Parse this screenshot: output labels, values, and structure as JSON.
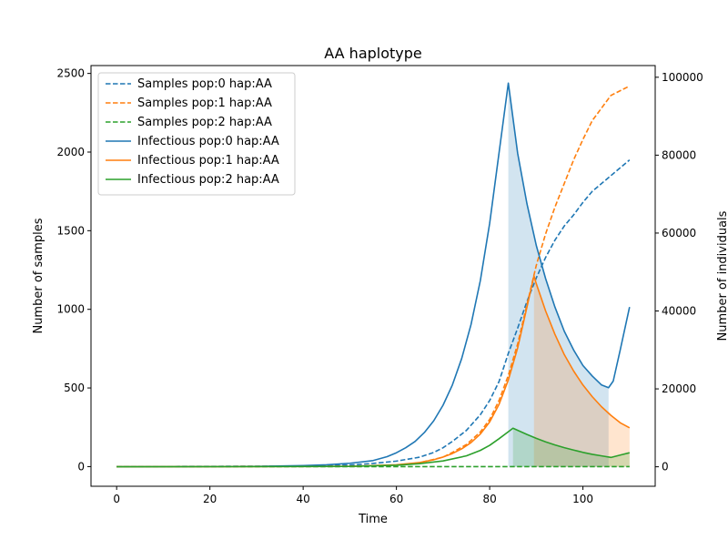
{
  "chart_data": {
    "type": "line",
    "title": "AA haplotype",
    "xlabel": "Time",
    "ylabel": "Number of samples",
    "y2label": "Number of individuals",
    "xlim": [
      -5.5,
      115.5
    ],
    "ylim": [
      -125,
      2550
    ],
    "y2lim": [
      -5000,
      103000
    ],
    "xticks": [
      "0",
      "20",
      "40",
      "60",
      "80",
      "100"
    ],
    "yticks": [
      "0",
      "500",
      "1000",
      "1500",
      "2000",
      "2500"
    ],
    "y2ticks": [
      "0",
      "20000",
      "40000",
      "60000",
      "80000",
      "100000"
    ],
    "legend_position": "upper-left",
    "series": [
      {
        "name": "Samples pop:0 hap:AA",
        "axis": "left",
        "style": "dashed",
        "color": "#1f77b4",
        "x": [
          0,
          40,
          50,
          55,
          60,
          65,
          68,
          70,
          72,
          75,
          78,
          80,
          82,
          84,
          86,
          88,
          90,
          92,
          94,
          96,
          98,
          100,
          102,
          104,
          106,
          108,
          110
        ],
        "y": [
          0,
          3,
          10,
          20,
          35,
          60,
          90,
          120,
          160,
          230,
          330,
          420,
          540,
          720,
          880,
          1050,
          1200,
          1330,
          1440,
          1530,
          1600,
          1680,
          1750,
          1800,
          1850,
          1900,
          1950
        ]
      },
      {
        "name": "Samples pop:1 hap:AA",
        "axis": "left",
        "style": "dashed",
        "color": "#ff7f0e",
        "x": [
          0,
          50,
          60,
          65,
          70,
          72,
          75,
          78,
          80,
          82,
          84,
          86,
          88,
          90,
          92,
          94,
          96,
          98,
          100,
          102,
          104,
          106,
          108,
          110
        ],
        "y": [
          0,
          2,
          10,
          25,
          60,
          90,
          140,
          220,
          300,
          420,
          580,
          780,
          1030,
          1280,
          1480,
          1650,
          1800,
          1950,
          2080,
          2200,
          2280,
          2360,
          2390,
          2420
        ]
      },
      {
        "name": "Samples pop:2 hap:AA",
        "axis": "left",
        "style": "dashed",
        "color": "#2ca02c",
        "x": [
          0,
          110
        ],
        "y": [
          0,
          0
        ]
      },
      {
        "name": "Infectious pop:0 hap:AA",
        "axis": "right",
        "style": "solid",
        "color": "#1f77b4",
        "x": [
          0,
          30,
          40,
          45,
          50,
          55,
          58,
          60,
          62,
          64,
          66,
          68,
          70,
          72,
          74,
          76,
          78,
          80,
          82,
          84,
          86,
          88,
          90,
          92,
          94,
          96,
          98,
          100,
          102,
          104,
          105.5,
          106.5,
          108,
          110
        ],
        "y": [
          0,
          100,
          300,
          500,
          900,
          1600,
          2600,
          3600,
          4900,
          6500,
          8800,
          11800,
          15800,
          21000,
          27800,
          36500,
          47800,
          62500,
          80500,
          98500,
          80500,
          67500,
          56800,
          48300,
          41000,
          34800,
          30000,
          26000,
          23300,
          21000,
          20300,
          22000,
          30000,
          41000
        ]
      },
      {
        "name": "Infectious pop:1 hap:AA",
        "axis": "right",
        "style": "solid",
        "color": "#ff7f0e",
        "x": [
          0,
          50,
          60,
          65,
          68,
          70,
          72,
          74,
          76,
          78,
          80,
          82,
          84,
          86,
          88,
          89.5,
          90,
          92,
          94,
          96,
          98,
          100,
          102,
          104,
          106,
          108,
          110
        ],
        "y": [
          0,
          100,
          500,
          1100,
          1800,
          2500,
          3400,
          4600,
          6200,
          8400,
          11500,
          16000,
          22300,
          30500,
          41000,
          49000,
          47000,
          40000,
          34000,
          28800,
          24600,
          21000,
          18000,
          15400,
          13200,
          11300,
          10000
        ]
      },
      {
        "name": "Infectious pop:2 hap:AA",
        "axis": "right",
        "style": "solid",
        "color": "#2ca02c",
        "x": [
          0,
          50,
          60,
          65,
          70,
          75,
          78,
          80,
          82,
          84,
          85,
          88,
          90,
          92,
          94,
          96,
          98,
          100,
          102,
          104,
          106,
          108,
          110
        ],
        "y": [
          0,
          100,
          400,
          800,
          1500,
          2800,
          4200,
          5500,
          7200,
          9000,
          9900,
          8300,
          7300,
          6400,
          5600,
          4900,
          4300,
          3700,
          3200,
          2800,
          2400,
          3000,
          3600
        ]
      }
    ],
    "shaded_regions": [
      {
        "series": 3,
        "x_start": 84,
        "x_end": 105.5,
        "color": "#1f77b4"
      },
      {
        "series": 4,
        "x_start": 89.5,
        "x_end": 110,
        "color": "#ff7f0e"
      },
      {
        "series": 5,
        "x_start": 85,
        "x_end": 110,
        "color": "#2ca02c"
      }
    ]
  }
}
